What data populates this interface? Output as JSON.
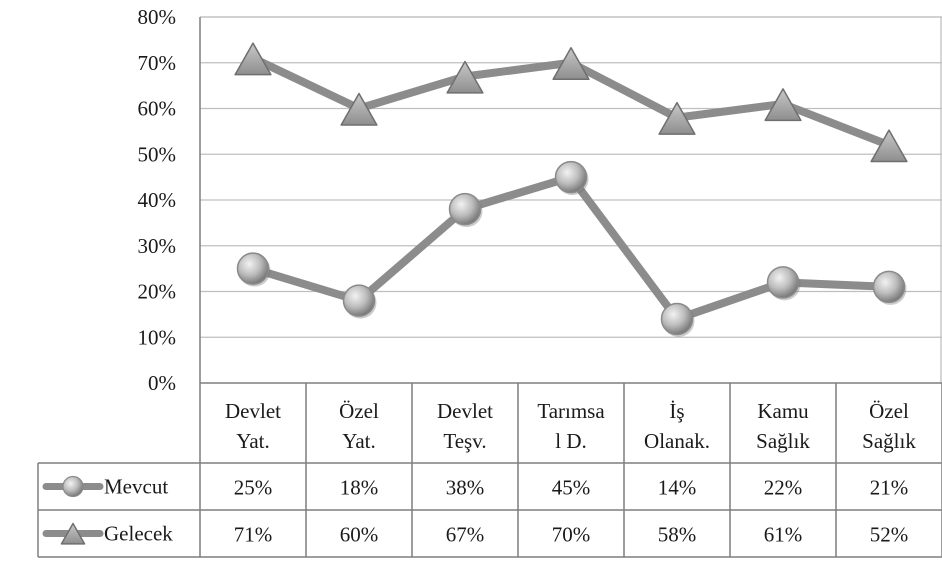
{
  "chart_data": {
    "type": "line",
    "title": "",
    "xlabel": "",
    "ylabel": "",
    "ylim": [
      0,
      80
    ],
    "y_ticks": [
      "0%",
      "10%",
      "20%",
      "30%",
      "40%",
      "50%",
      "60%",
      "70%",
      "80%"
    ],
    "y_unit": "%",
    "grid": true,
    "legend": "data-table",
    "categories": [
      [
        "Devlet",
        "Yat."
      ],
      [
        "Özel",
        "Yat."
      ],
      [
        "Devlet",
        "Teşv."
      ],
      [
        "Tarımsa",
        "l D."
      ],
      [
        "İş",
        "Olanak."
      ],
      [
        "Kamu",
        "Sağlık"
      ],
      [
        "Özel",
        "Sağlık"
      ]
    ],
    "series": [
      {
        "name": "Mevcut",
        "marker": "circle",
        "color": "#8c8c8c",
        "values": [
          25,
          18,
          38,
          45,
          14,
          22,
          21
        ],
        "labels": [
          "25%",
          "18%",
          "38%",
          "45%",
          "14%",
          "22%",
          "21%"
        ]
      },
      {
        "name": "Gelecek",
        "marker": "triangle",
        "color": "#8c8c8c",
        "values": [
          71,
          60,
          67,
          70,
          58,
          61,
          52
        ],
        "labels": [
          "71%",
          "60%",
          "67%",
          "70%",
          "58%",
          "61%",
          "52%"
        ]
      }
    ]
  }
}
